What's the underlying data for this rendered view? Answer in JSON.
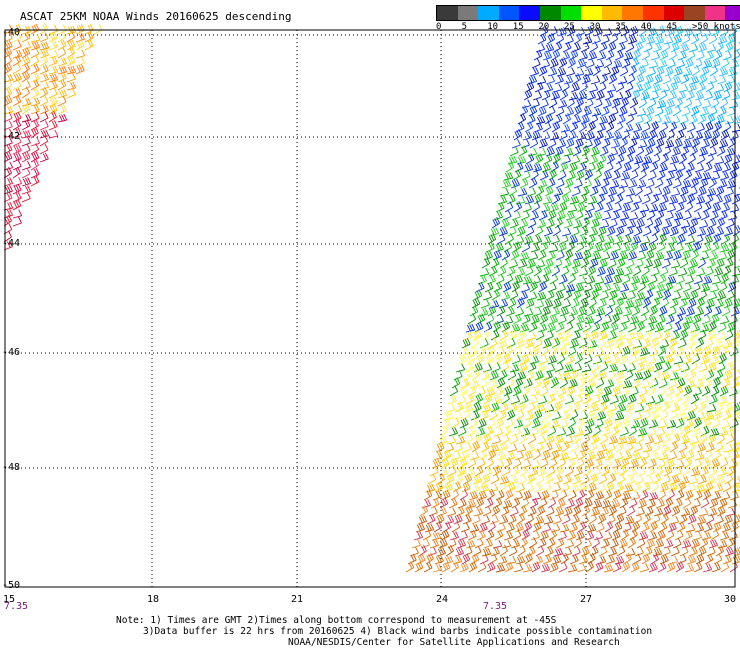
{
  "title": "ASCAT 25KM NOAA Winds 20160625 descending",
  "legend": {
    "colors": [
      "#3a3a3a",
      "#7a7a7a",
      "#00aaff",
      "#0055ff",
      "#0a0aff",
      "#008800",
      "#00dd00",
      "#ffff00",
      "#ffbb00",
      "#ff7700",
      "#ff3300",
      "#dd0000",
      "#994422",
      "#ee3388",
      "#9900cc",
      "#440088"
    ],
    "labels": [
      "0",
      "5",
      "10",
      "15",
      "20",
      "25",
      "30",
      "35",
      "40",
      "45",
      ">50 knots"
    ]
  },
  "map": {
    "lat_labels": [
      "-40",
      "-42",
      "-44",
      "-46",
      "-48",
      "-50"
    ],
    "lon_labels": [
      "15",
      "18",
      "21",
      "24",
      "27",
      "30"
    ],
    "time_labels": [
      "7.35",
      "7.35"
    ]
  },
  "notes": [
    "Note: 1) Times are GMT 2)Times along bottom correspond to measurement at -45S",
    "3)Data buffer is 22 hrs from 20160625 4) Black wind barbs indicate possible contamination",
    "NOAA/NESDIS/Center for Satellite Applications and Research"
  ]
}
